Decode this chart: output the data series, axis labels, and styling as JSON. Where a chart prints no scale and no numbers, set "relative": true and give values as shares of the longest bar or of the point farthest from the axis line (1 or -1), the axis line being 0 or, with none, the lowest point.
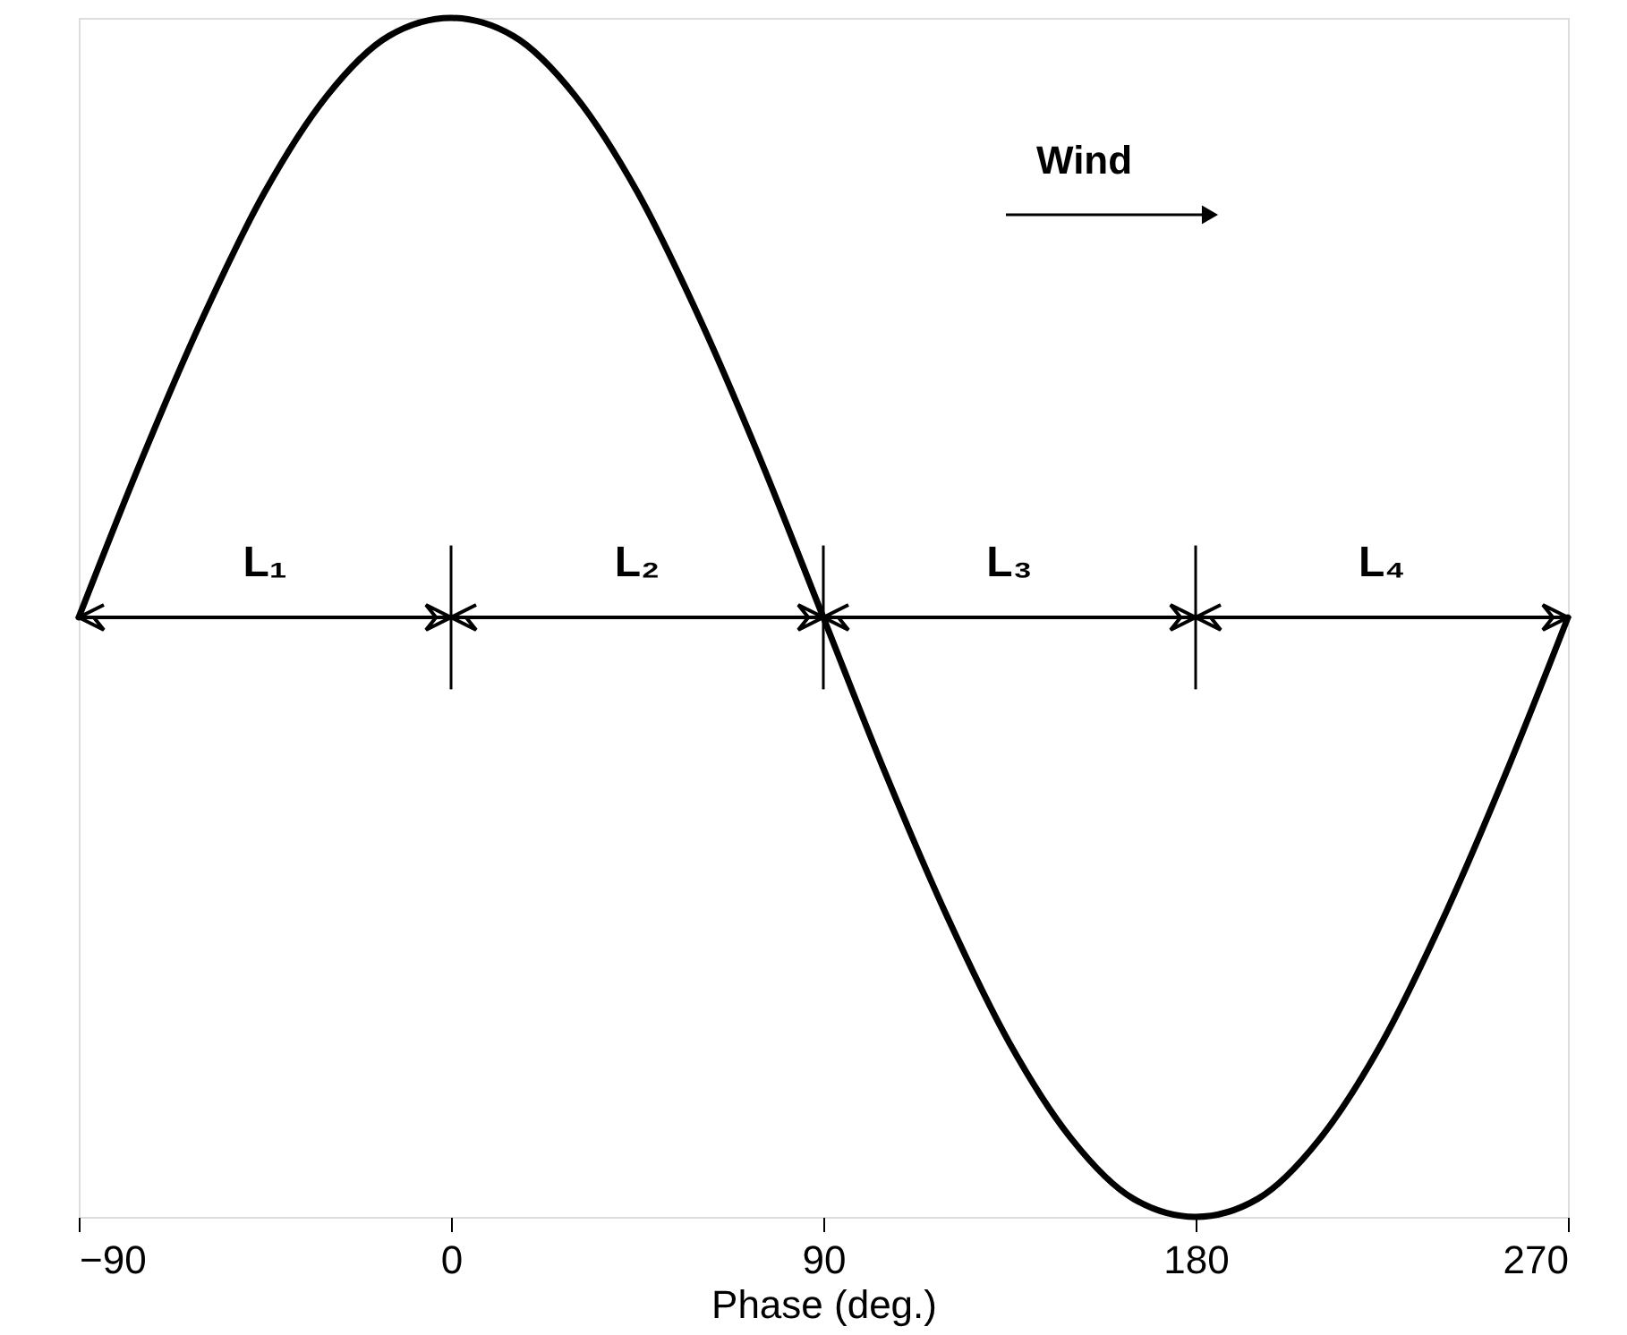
{
  "chart_data": {
    "type": "line",
    "xlabel": "Phase (deg.)",
    "relative": true,
    "color": "#000000",
    "line_style": "solid",
    "grid": false,
    "x": [
      -90,
      -75,
      -60,
      -45,
      -30,
      -15,
      0,
      15,
      30,
      45,
      60,
      75,
      90,
      105,
      120,
      135,
      150,
      165,
      180,
      195,
      210,
      225,
      240,
      255,
      270
    ],
    "values": [
      0.5,
      0.63,
      0.75,
      0.855,
      0.935,
      0.985,
      1,
      0.985,
      0.935,
      0.855,
      0.75,
      0.63,
      0.5,
      0.37,
      0.25,
      0.145,
      0.065,
      0.015,
      0,
      0.015,
      0.065,
      0.145,
      0.25,
      0.37,
      0.5
    ],
    "xlim": [
      -90,
      270
    ],
    "xticks": [
      -90,
      0,
      90,
      180,
      270
    ],
    "ref_lines": [
      {
        "axis": "y",
        "value": 0.5,
        "color": "#000000"
      },
      {
        "axis": "x",
        "value": 0,
        "color": "#000000"
      },
      {
        "axis": "x",
        "value": 90,
        "color": "#000000"
      },
      {
        "axis": "x",
        "value": 180,
        "color": "#000000"
      }
    ],
    "annotations": [
      "L₁",
      "L₂",
      "L₃",
      "L₄",
      "Wind"
    ]
  }
}
